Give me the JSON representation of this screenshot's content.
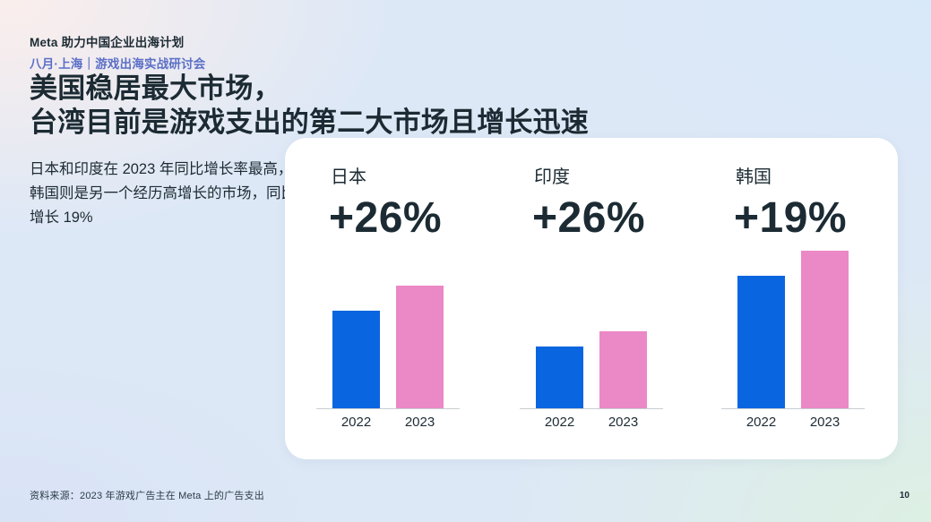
{
  "deck_header": {
    "title": "Meta 助力中国企业出海计划",
    "subtitle": "八月·上海｜游戏出海实战研讨会"
  },
  "slide_title": {
    "line1": "美国稳居最大市场，",
    "line2": "台湾目前是游戏支出的第二大市场且增长迅速"
  },
  "insight_text": "日本和印度在 2023 年同比增长率最高，韩国则是另一个经历高增长的市场，同比增长 19%",
  "footer": {
    "source": "资料来源：2023 年游戏广告主在 Meta 上的广告支出",
    "page_number": "10"
  },
  "chart_data": {
    "type": "bar",
    "categories": [
      "2022",
      "2023"
    ],
    "groups": [
      {
        "label": "日本",
        "growth": "+26%",
        "values": [
          62,
          78
        ]
      },
      {
        "label": "印度",
        "growth": "+26%",
        "values": [
          39,
          49
        ]
      },
      {
        "label": "韩国",
        "growth": "+19%",
        "values": [
          84,
          100
        ]
      }
    ],
    "ylim": [
      0,
      100
    ],
    "grid": false,
    "legend": "none",
    "value_note": "no numeric axis shown; values normalized so 韩国 2023 = 100, preserving on-screen bar proportions"
  },
  "colors": {
    "bar_2022": "#0a66e0",
    "bar_2023": "#eb88c6",
    "text_dark": "#1c2b33",
    "subtitle_blue": "#5b6fc7",
    "axis_line": "#c9cdd1",
    "card_bg": "#ffffff"
  }
}
